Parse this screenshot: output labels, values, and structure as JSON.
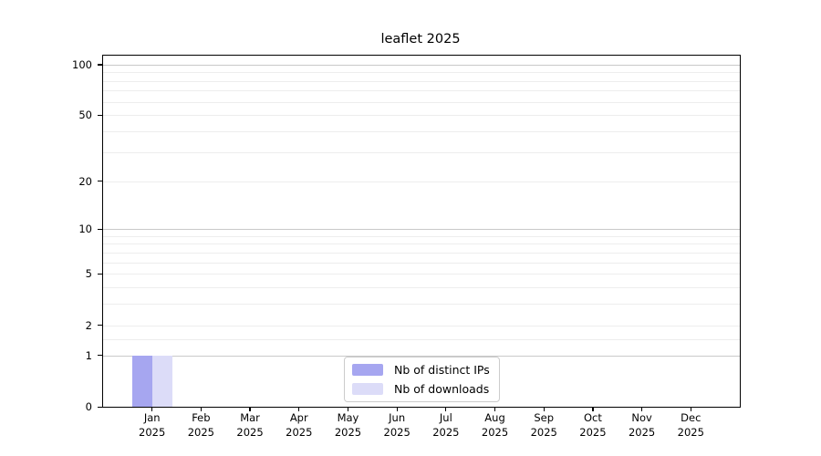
{
  "chart_data": {
    "type": "bar",
    "title": "leaflet 2025",
    "categories": [
      "Jan",
      "Feb",
      "Mar",
      "Apr",
      "May",
      "Jun",
      "Jul",
      "Aug",
      "Sep",
      "Oct",
      "Nov",
      "Dec"
    ],
    "category_year_line": "2025",
    "series": [
      {
        "name": "Nb of distinct IPs",
        "color": "#a6a6f0",
        "values": [
          1,
          0,
          0,
          0,
          0,
          0,
          0,
          0,
          0,
          0,
          0,
          0
        ]
      },
      {
        "name": "Nb of downloads",
        "color": "#dcdcf8",
        "values": [
          1,
          0,
          0,
          0,
          0,
          0,
          0,
          0,
          0,
          0,
          0,
          0
        ]
      }
    ],
    "xlabel": "",
    "ylabel": "",
    "y_scale": "log10(1+x)",
    "y_tick_values": [
      0,
      1,
      2,
      5,
      10,
      20,
      50,
      100
    ],
    "y_major_gridlines": [
      1,
      10,
      100
    ],
    "y_minor_gridlines": [
      1.5,
      2,
      3,
      4,
      5,
      6,
      7,
      8,
      9,
      20,
      30,
      40,
      50,
      60,
      70,
      80,
      90
    ],
    "y_axis_top_value": 113,
    "grid": true,
    "legend_position": "inside-bottom-center",
    "colors": {
      "background": "#ffffff",
      "axis": "#000000",
      "text": "#000000",
      "major_grid": "#c9c9c9",
      "minor_grid": "#ededed",
      "legend_border": "#cccccc"
    }
  }
}
